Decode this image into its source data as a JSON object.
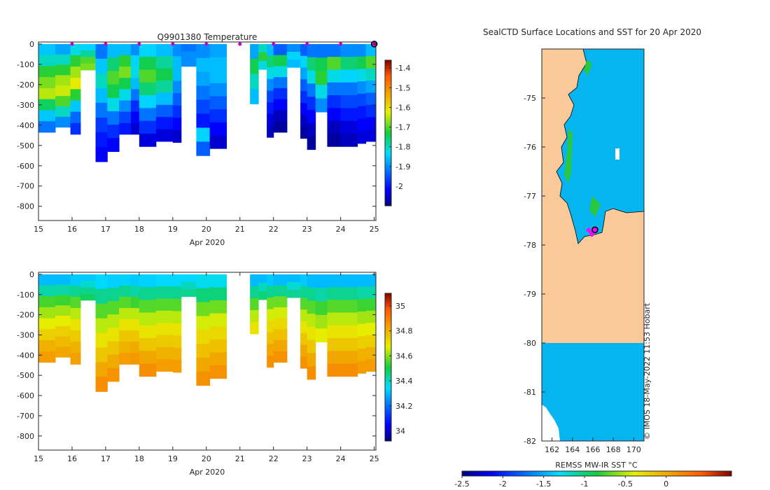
{
  "chart_data": [
    {
      "type": "heatmap",
      "title": "Q9901380  Temperature",
      "xlabel": "Apr 2020",
      "ylabel": "",
      "xlim": [
        15,
        25.05
      ],
      "ylim": [
        -870,
        10
      ],
      "xticks": [
        "15",
        "16",
        "17",
        "18",
        "19",
        "20",
        "21",
        "22",
        "23",
        "24",
        "25"
      ],
      "yticks": [
        "0",
        "-100",
        "-200",
        "-300",
        "-400",
        "-500",
        "-600",
        "-700",
        "-800"
      ],
      "colorbar": {
        "min": -2.1,
        "max": -1.36,
        "ticks": [
          "-1.4",
          "-1.5",
          "-1.6",
          "-1.7",
          "-1.8",
          "-1.9",
          "-2"
        ]
      },
      "profile_markers_x": [
        16,
        17,
        18,
        19,
        20,
        21,
        22,
        23,
        24
      ],
      "latest_marker_x": 25,
      "profiles": [
        {
          "x0": 15.0,
          "x1": 15.5,
          "depth": 435,
          "t": [
            -1.85,
            -1.8,
            -1.72,
            -1.68,
            -1.65,
            -1.75,
            -1.85,
            -1.92
          ]
        },
        {
          "x0": 15.5,
          "x1": 15.95,
          "depth": 410,
          "t": [
            -1.88,
            -1.8,
            -1.72,
            -1.66,
            -1.64,
            -1.7,
            -1.8,
            -1.9
          ]
        },
        {
          "x0": 15.95,
          "x1": 16.25,
          "depth": 445,
          "t": [
            -1.82,
            -1.72,
            -1.66,
            -1.62,
            -1.72,
            -1.85,
            -1.93,
            -1.98
          ]
        },
        {
          "x0": 16.25,
          "x1": 16.7,
          "depth": 128,
          "t": [
            -1.84,
            -1.78,
            -1.7,
            -1.68
          ]
        },
        {
          "x0": 16.7,
          "x1": 17.05,
          "depth": 580,
          "t": [
            -1.92,
            -1.85,
            -1.8,
            -1.86,
            -1.92,
            -1.97,
            -2.0,
            -2.02
          ]
        },
        {
          "x0": 17.05,
          "x1": 17.4,
          "depth": 530,
          "t": [
            -1.86,
            -1.76,
            -1.7,
            -1.74,
            -1.82,
            -1.92,
            -1.98,
            -2.02
          ]
        },
        {
          "x0": 17.4,
          "x1": 17.75,
          "depth": 445,
          "t": [
            -1.86,
            -1.72,
            -1.68,
            -1.74,
            -1.82,
            -1.9,
            -1.96,
            -2.0
          ]
        },
        {
          "x0": 17.75,
          "x1": 18.0,
          "depth": 445,
          "t": [
            -1.9,
            -1.84,
            -1.82,
            -1.86,
            -1.92,
            -1.98,
            -2.02,
            -2.05
          ]
        },
        {
          "x0": 18.0,
          "x1": 18.5,
          "depth": 505,
          "t": [
            -1.84,
            -1.74,
            -1.7,
            -1.76,
            -1.84,
            -1.92,
            -1.98,
            -2.04
          ]
        },
        {
          "x0": 18.5,
          "x1": 19.0,
          "depth": 480,
          "t": [
            -1.86,
            -1.78,
            -1.74,
            -1.78,
            -1.86,
            -1.94,
            -2.0,
            -2.04
          ]
        },
        {
          "x0": 19.0,
          "x1": 19.25,
          "depth": 485,
          "t": [
            -1.9,
            -1.86,
            -1.86,
            -1.9,
            -1.94,
            -1.98,
            -2.02,
            -2.05
          ]
        },
        {
          "x0": 19.25,
          "x1": 19.7,
          "depth": 110,
          "t": [
            -1.92,
            -1.9,
            -1.9
          ]
        },
        {
          "x0": 19.7,
          "x1": 20.1,
          "depth": 550,
          "t": [
            -1.9,
            -1.86,
            -1.88,
            -1.92,
            -1.96,
            -2.0,
            -1.84,
            -1.94
          ]
        },
        {
          "x0": 20.1,
          "x1": 20.6,
          "depth": 515,
          "t": [
            -1.88,
            -1.86,
            -1.86,
            -1.9,
            -1.94,
            -1.98,
            -2.02,
            -2.05
          ]
        },
        {
          "x0": 21.3,
          "x1": 21.55,
          "depth": 295,
          "t": [
            -1.88,
            -1.74,
            -1.8,
            -1.86
          ]
        },
        {
          "x0": 21.55,
          "x1": 21.8,
          "depth": 125,
          "t": [
            -1.8,
            -1.72,
            -1.82
          ]
        },
        {
          "x0": 21.8,
          "x1": 22.0,
          "depth": 460,
          "t": [
            -1.86,
            -1.76,
            -1.82,
            -1.9,
            -1.96,
            -2.0,
            -2.04,
            -2.06
          ]
        },
        {
          "x0": 22.0,
          "x1": 22.4,
          "depth": 435,
          "t": [
            -1.94,
            -1.74,
            -1.82,
            -1.92,
            -1.98,
            -2.02,
            -2.06,
            -2.08
          ]
        },
        {
          "x0": 22.4,
          "x1": 22.8,
          "depth": 115,
          "t": [
            -1.9,
            -1.84,
            -1.86
          ]
        },
        {
          "x0": 22.8,
          "x1": 23.0,
          "depth": 465,
          "t": [
            -1.94,
            -1.84,
            -1.88,
            -1.94,
            -1.98,
            -2.02,
            -2.06,
            -2.08
          ]
        },
        {
          "x0": 23.0,
          "x1": 23.25,
          "depth": 520,
          "t": [
            -1.92,
            -1.76,
            -1.82,
            -1.92,
            -1.98,
            -2.02,
            -2.06,
            -2.08
          ]
        },
        {
          "x0": 23.25,
          "x1": 23.6,
          "depth": 335,
          "t": [
            -1.92,
            -1.74,
            -1.72,
            -1.82,
            -1.9
          ]
        },
        {
          "x0": 23.6,
          "x1": 24.0,
          "depth": 505,
          "t": [
            -1.92,
            -1.7,
            -1.82,
            -1.92,
            -1.98,
            -2.02,
            -2.06,
            -2.08
          ]
        },
        {
          "x0": 24.0,
          "x1": 24.5,
          "depth": 505,
          "t": [
            -1.9,
            -1.76,
            -1.84,
            -1.92,
            -1.96,
            -2.0,
            -2.04,
            -2.06
          ]
        },
        {
          "x0": 24.5,
          "x1": 24.75,
          "depth": 490,
          "t": [
            -1.9,
            -1.74,
            -1.82,
            -1.9,
            -1.96,
            -2.0,
            -2.02,
            -2.04
          ]
        },
        {
          "x0": 24.75,
          "x1": 25.05,
          "depth": 480,
          "t": [
            -1.86,
            -1.7,
            -1.8,
            -1.88,
            -1.94,
            -1.98,
            -2.02,
            -2.04
          ]
        }
      ]
    },
    {
      "type": "heatmap",
      "title": "",
      "xlabel": "Apr 2020",
      "ylabel": "",
      "xlim": [
        15,
        25.05
      ],
      "ylim": [
        -870,
        10
      ],
      "xticks": [
        "15",
        "16",
        "17",
        "18",
        "19",
        "20",
        "21",
        "22",
        "23",
        "24",
        "25"
      ],
      "yticks": [
        "0",
        "-100",
        "-200",
        "-300",
        "-400",
        "-500",
        "-600",
        "-700",
        "-800"
      ],
      "colorbar": {
        "min": 33.92,
        "max": 35.1,
        "ticks": [
          "35",
          "34.8",
          "34.6",
          "34.4",
          "34.2",
          "34"
        ]
      },
      "profiles": [
        {
          "x0": 15.0,
          "x1": 15.5,
          "depth": 435,
          "s": [
            34.3,
            34.42,
            34.55,
            34.62,
            34.68,
            34.74,
            34.8,
            34.84
          ]
        },
        {
          "x0": 15.5,
          "x1": 15.95,
          "depth": 410,
          "s": [
            34.3,
            34.42,
            34.54,
            34.62,
            34.68,
            34.74,
            34.78,
            34.82
          ]
        },
        {
          "x0": 15.95,
          "x1": 16.25,
          "depth": 445,
          "s": [
            34.32,
            34.44,
            34.56,
            34.64,
            34.7,
            34.75,
            34.8,
            34.83
          ]
        },
        {
          "x0": 16.25,
          "x1": 16.7,
          "depth": 128,
          "s": [
            34.32,
            34.38,
            34.44,
            34.48
          ]
        },
        {
          "x0": 16.7,
          "x1": 17.05,
          "depth": 580,
          "s": [
            34.34,
            34.44,
            34.56,
            34.64,
            34.7,
            34.76,
            34.82,
            34.87
          ]
        },
        {
          "x0": 17.05,
          "x1": 17.4,
          "depth": 530,
          "s": [
            34.33,
            34.44,
            34.56,
            34.64,
            34.7,
            34.76,
            34.81,
            34.86
          ]
        },
        {
          "x0": 17.4,
          "x1": 17.75,
          "depth": 445,
          "s": [
            34.33,
            34.44,
            34.56,
            34.64,
            34.7,
            34.76,
            34.8,
            34.84
          ]
        },
        {
          "x0": 17.75,
          "x1": 18.0,
          "depth": 445,
          "s": [
            34.32,
            34.42,
            34.54,
            34.64,
            34.7,
            34.76,
            34.81,
            34.85
          ]
        },
        {
          "x0": 18.0,
          "x1": 18.5,
          "depth": 505,
          "s": [
            34.33,
            34.44,
            34.56,
            34.64,
            34.7,
            34.76,
            34.82,
            34.87
          ]
        },
        {
          "x0": 18.5,
          "x1": 19.0,
          "depth": 480,
          "s": [
            34.34,
            34.44,
            34.56,
            34.64,
            34.7,
            34.75,
            34.8,
            34.84
          ]
        },
        {
          "x0": 19.0,
          "x1": 19.25,
          "depth": 485,
          "s": [
            34.34,
            34.44,
            34.56,
            34.64,
            34.7,
            34.75,
            34.8,
            34.84
          ]
        },
        {
          "x0": 19.25,
          "x1": 19.7,
          "depth": 110,
          "s": [
            34.34,
            34.4,
            34.44
          ]
        },
        {
          "x0": 19.7,
          "x1": 20.1,
          "depth": 550,
          "s": [
            34.36,
            34.46,
            34.58,
            34.66,
            34.72,
            34.77,
            34.82,
            34.86
          ]
        },
        {
          "x0": 20.1,
          "x1": 20.6,
          "depth": 515,
          "s": [
            34.36,
            34.46,
            34.58,
            34.66,
            34.72,
            34.77,
            34.82,
            34.86
          ]
        },
        {
          "x0": 21.3,
          "x1": 21.55,
          "depth": 295,
          "s": [
            34.3,
            34.44,
            34.56,
            34.64,
            34.7
          ]
        },
        {
          "x0": 21.55,
          "x1": 21.8,
          "depth": 125,
          "s": [
            34.3,
            34.4,
            34.46
          ]
        },
        {
          "x0": 21.8,
          "x1": 22.0,
          "depth": 460,
          "s": [
            34.32,
            34.44,
            34.58,
            34.66,
            34.72,
            34.77,
            34.82,
            34.86
          ]
        },
        {
          "x0": 22.0,
          "x1": 22.4,
          "depth": 435,
          "s": [
            34.3,
            34.44,
            34.58,
            34.66,
            34.72,
            34.77,
            34.82,
            34.86
          ]
        },
        {
          "x0": 22.4,
          "x1": 22.8,
          "depth": 115,
          "s": [
            34.3,
            34.38,
            34.44
          ]
        },
        {
          "x0": 22.8,
          "x1": 23.0,
          "depth": 465,
          "s": [
            34.32,
            34.44,
            34.56,
            34.64,
            34.7,
            34.76,
            34.82,
            34.86
          ]
        },
        {
          "x0": 23.0,
          "x1": 23.25,
          "depth": 520,
          "s": [
            34.3,
            34.44,
            34.56,
            34.64,
            34.7,
            34.76,
            34.82,
            34.87
          ]
        },
        {
          "x0": 23.25,
          "x1": 23.6,
          "depth": 335,
          "s": [
            34.3,
            34.42,
            34.54,
            34.62,
            34.68
          ]
        },
        {
          "x0": 23.6,
          "x1": 24.0,
          "depth": 505,
          "s": [
            34.3,
            34.44,
            34.56,
            34.64,
            34.7,
            34.76,
            34.82,
            34.87
          ]
        },
        {
          "x0": 24.0,
          "x1": 24.5,
          "depth": 505,
          "s": [
            34.3,
            34.44,
            34.56,
            34.64,
            34.7,
            34.76,
            34.82,
            34.87
          ]
        },
        {
          "x0": 24.5,
          "x1": 24.75,
          "depth": 490,
          "s": [
            34.3,
            34.42,
            34.54,
            34.62,
            34.68,
            34.74,
            34.8,
            34.84
          ]
        },
        {
          "x0": 24.75,
          "x1": 25.05,
          "depth": 480,
          "s": [
            34.3,
            34.42,
            34.54,
            34.62,
            34.68,
            34.74,
            34.8,
            34.84
          ]
        }
      ]
    },
    {
      "type": "heatmap",
      "title": "SealCTD Surface Locations and SST for 20 Apr 2020",
      "xlabel": "",
      "ylabel": "",
      "xlim": [
        161,
        171
      ],
      "ylim": [
        -82,
        -74
      ],
      "xticks": [
        "162",
        "164",
        "166",
        "168",
        "170"
      ],
      "yticks": [
        "-75",
        "-76",
        "-77",
        "-78",
        "-79",
        "-80",
        "-81",
        "-82"
      ],
      "sst_value_open_water": -1.8,
      "land_color": "#f9c999",
      "annotation": "© IMOS 18-May-2022 11:53 Hobart",
      "colorbar": {
        "label": "REMSS MW-IR SST °C",
        "min": -2.5,
        "max": 0.8,
        "ticks": [
          "-2.5",
          "-2",
          "-1.5",
          "-1",
          "-0.5",
          "0"
        ]
      },
      "track_points": [
        [
          165.6,
          -77.68
        ],
        [
          165.7,
          -77.72
        ],
        [
          165.5,
          -77.7
        ],
        [
          165.9,
          -77.8
        ],
        [
          166.0,
          -77.75
        ],
        [
          165.8,
          -77.76
        ]
      ],
      "latest_point": [
        166.2,
        -77.69
      ]
    }
  ]
}
